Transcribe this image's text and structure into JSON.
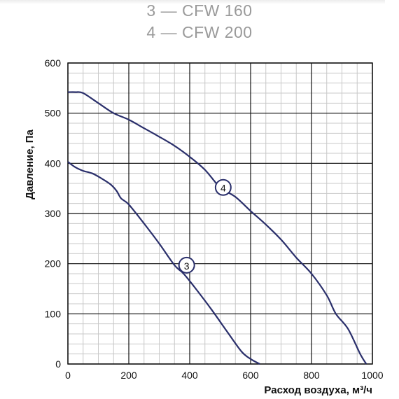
{
  "legend": [
    "3 — CFW 160",
    "4 — CFW 200"
  ],
  "chart_data": {
    "type": "line",
    "title": "",
    "xlabel": "Расход воздуха, м³/ч",
    "ylabel": "Давление, Па",
    "xlim": [
      0,
      1000
    ],
    "ylim": [
      0,
      600
    ],
    "x_ticks": [
      0,
      200,
      400,
      600,
      800,
      1000
    ],
    "y_ticks": [
      0,
      100,
      200,
      300,
      400,
      500,
      600
    ],
    "grid": true,
    "minor_grid_step": {
      "x": 50,
      "y": 20
    },
    "series": [
      {
        "name": "3",
        "x": [
          0,
          25,
          50,
          80,
          110,
          140,
          160,
          175,
          200,
          250,
          300,
          350,
          380,
          420,
          470,
          520,
          570,
          600,
          630
        ],
        "y": [
          403,
          392,
          385,
          380,
          370,
          358,
          345,
          330,
          318,
          280,
          240,
          197,
          180,
          150,
          110,
          67,
          25,
          10,
          0
        ]
      },
      {
        "name": "4",
        "x": [
          0,
          25,
          50,
          100,
          150,
          200,
          250,
          300,
          350,
          400,
          450,
          500,
          550,
          600,
          650,
          700,
          750,
          800,
          850,
          880,
          920,
          960,
          980
        ],
        "y": [
          542,
          542,
          540,
          520,
          500,
          487,
          470,
          453,
          435,
          413,
          387,
          352,
          333,
          305,
          278,
          248,
          212,
          180,
          137,
          100,
          70,
          20,
          0
        ]
      }
    ],
    "annotations": [
      {
        "label": "3",
        "x": 390,
        "y": 197
      },
      {
        "label": "4",
        "x": 510,
        "y": 352
      }
    ]
  },
  "colors": {
    "curve": "#2a2f6b",
    "grid_major": "#111111",
    "grid_minor": "#c8c8c8",
    "legend_text": "#9a9a9a"
  }
}
